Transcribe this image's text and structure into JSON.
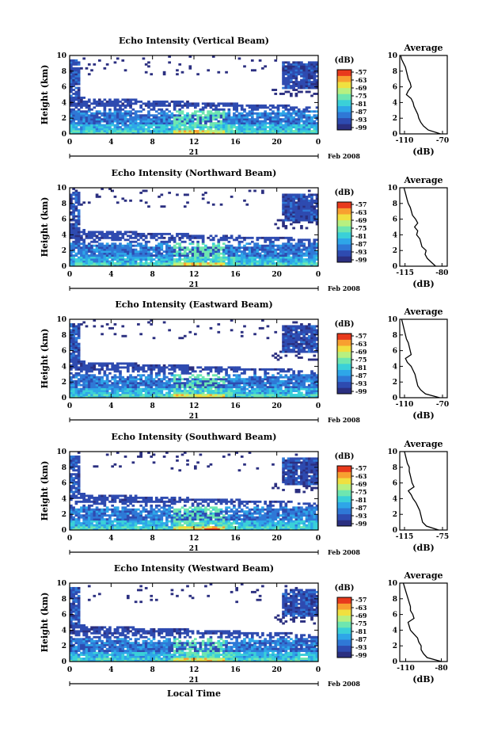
{
  "shared": {
    "ylabel": "Height (km)",
    "y_ticks": [
      "0",
      "2",
      "4",
      "6",
      "8",
      "10"
    ],
    "ylim": [
      0,
      10
    ],
    "x_ticks": [
      "0",
      "4",
      "8",
      "12",
      "16",
      "20",
      "0"
    ],
    "xlim": [
      0,
      24
    ],
    "date_day": "21",
    "date_label": "Feb 2008",
    "x_title": "Local Time",
    "colorbar_unit": "(dB)",
    "colorbar_ticks": [
      "-57",
      "-63",
      "-69",
      "-75",
      "-81",
      "-87",
      "-93",
      "-99"
    ],
    "avg_title": "Average",
    "avg_xlabel": "(dB)",
    "colormap": [
      "#2b2f80",
      "#2e4bb0",
      "#2f78d6",
      "#2ea6e8",
      "#3ad0d8",
      "#6ee6b0",
      "#b8f080",
      "#f0e040",
      "#f8a030",
      "#e83a1c"
    ]
  },
  "panels": [
    {
      "title": "Echo Intensity (Vertical Beam)",
      "avg_xticks": [
        "-110",
        "-70"
      ],
      "avg_xlim": [
        -115,
        -65
      ],
      "chart_data": {
        "type": "heatmap",
        "profile_height_km": [
          0,
          0.5,
          1,
          1.5,
          2,
          2.5,
          3,
          3.5,
          4,
          4.5,
          5,
          5.5,
          6,
          6.5,
          7,
          7.5,
          8,
          8.5,
          9,
          9.5,
          10
        ],
        "average_dB": [
          -72,
          -85,
          -90,
          -93,
          -95,
          -96,
          -98,
          -100,
          -101,
          -103,
          -108,
          -106,
          -103,
          -104,
          -106,
          -107,
          -108,
          -109,
          -111,
          -113,
          -114
        ]
      }
    },
    {
      "title": "Echo Intensity (Northward Beam)",
      "avg_xticks": [
        "-115",
        "-80"
      ],
      "avg_xlim": [
        -120,
        -75
      ],
      "chart_data": {
        "type": "heatmap",
        "profile_height_km": [
          0,
          0.5,
          1,
          1.5,
          2,
          2.5,
          3,
          3.5,
          4,
          4.5,
          5,
          5.5,
          6,
          6.5,
          7,
          7.5,
          8,
          8.5,
          9,
          9.5,
          10
        ],
        "average_dB": [
          -86,
          -90,
          -94,
          -96,
          -95,
          -99,
          -100,
          -101,
          -104,
          -103,
          -106,
          -103,
          -105,
          -108,
          -109,
          -110,
          -112,
          -113,
          -114,
          -115,
          -116
        ]
      }
    },
    {
      "title": "Echo Intensity (Eastward Beam)",
      "avg_xticks": [
        "-110",
        "-70"
      ],
      "avg_xlim": [
        -115,
        -65
      ],
      "chart_data": {
        "type": "heatmap",
        "profile_height_km": [
          0,
          0.5,
          1,
          1.5,
          2,
          2.5,
          3,
          3.5,
          4,
          4.5,
          5,
          5.5,
          6,
          6.5,
          7,
          7.5,
          8,
          8.5,
          9,
          9.5,
          10
        ],
        "average_dB": [
          -73,
          -88,
          -93,
          -96,
          -97,
          -98,
          -99,
          -101,
          -103,
          -107,
          -109,
          -103,
          -104,
          -105,
          -106,
          -108,
          -109,
          -110,
          -111,
          -112,
          -113
        ]
      }
    },
    {
      "title": "Echo Intensity (Southward Beam)",
      "avg_xticks": [
        "-115",
        "-75"
      ],
      "avg_xlim": [
        -120,
        -70
      ],
      "chart_data": {
        "type": "heatmap",
        "profile_height_km": [
          0,
          0.5,
          1,
          1.5,
          2,
          2.5,
          3,
          3.5,
          4,
          4.5,
          5,
          5.5,
          6,
          6.5,
          7,
          7.5,
          8,
          8.5,
          9,
          9.5,
          10
        ],
        "average_dB": [
          -79,
          -92,
          -96,
          -97,
          -98,
          -99,
          -101,
          -103,
          -106,
          -108,
          -111,
          -105,
          -107,
          -108,
          -109,
          -110,
          -110,
          -112,
          -113,
          -114,
          -115
        ]
      }
    },
    {
      "title": "Echo Intensity (Westward Beam)",
      "avg_xticks": [
        "-110",
        "-80"
      ],
      "avg_xlim": [
        -115,
        -75
      ],
      "chart_data": {
        "type": "heatmap",
        "profile_height_km": [
          0,
          0.5,
          1,
          1.5,
          2,
          2.5,
          3,
          3.5,
          4,
          4.5,
          5,
          5.5,
          6,
          6.5,
          7,
          7.5,
          8,
          8.5,
          9,
          9.5,
          10
        ],
        "average_dB": [
          -80,
          -92,
          -95,
          -97,
          -97,
          -99,
          -100,
          -103,
          -106,
          -107,
          -108,
          -103,
          -104,
          -106,
          -106,
          -107,
          -108,
          -109,
          -110,
          -111,
          -112
        ]
      }
    }
  ]
}
